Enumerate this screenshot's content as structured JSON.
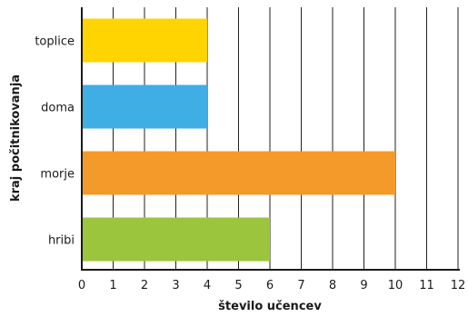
{
  "chart_data": {
    "type": "bar",
    "orientation": "horizontal",
    "categories": [
      "toplice",
      "doma",
      "morje",
      "hribi"
    ],
    "values": [
      4,
      4,
      10,
      6
    ],
    "colors": [
      "#FFD400",
      "#3FAEE5",
      "#F39A2B",
      "#9BC53D"
    ],
    "xlabel": "število učencev",
    "ylabel": "kraj počitnikovanja",
    "xlim": [
      0,
      12
    ],
    "xticks": [
      "0",
      "1",
      "2",
      "3",
      "4",
      "5",
      "6",
      "7",
      "8",
      "9",
      "10",
      "11",
      "12"
    ],
    "grid": "vertical"
  }
}
